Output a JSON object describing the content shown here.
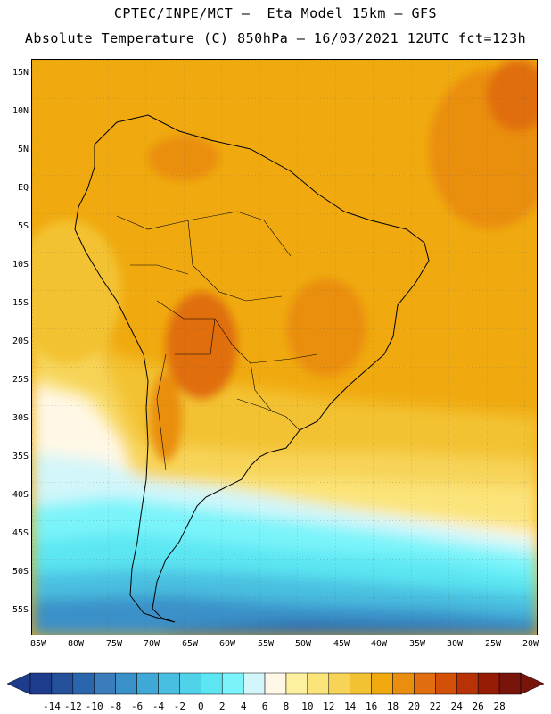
{
  "title_line1": "CPTEC/INPE/MCT –  Eta Model 15km – GFS",
  "title_line2": "Absolute Temperature (C) 850hPa – 16/03/2021 12UTC fct=123h",
  "lat_labels": [
    "15N",
    "10N",
    "5N",
    "EQ",
    "5S",
    "10S",
    "15S",
    "20S",
    "25S",
    "30S",
    "35S",
    "40S",
    "45S",
    "50S",
    "55S"
  ],
  "lon_labels": [
    "85W",
    "80W",
    "75W",
    "70W",
    "65W",
    "60W",
    "55W",
    "50W",
    "45W",
    "40W",
    "35W",
    "30W",
    "25W",
    "20W"
  ],
  "legend": {
    "labels": [
      "-14",
      "-12",
      "-10",
      "-8",
      "-6",
      "-4",
      "-2",
      "0",
      "2",
      "4",
      "6",
      "8",
      "10",
      "12",
      "14",
      "16",
      "18",
      "20",
      "22",
      "24",
      "26",
      "28"
    ],
    "colors": [
      "#1e3c8c",
      "#24509c",
      "#2a66ac",
      "#3a7cbc",
      "#3a90c8",
      "#40a8d6",
      "#48bfe0",
      "#50d2ea",
      "#5ce6f2",
      "#7af4fa",
      "#d2f6fa",
      "#fff8e6",
      "#fdf0a0",
      "#fbe47a",
      "#f7d458",
      "#f3c232",
      "#f0aa10",
      "#ea8e10",
      "#e06e10",
      "#d25008",
      "#b83208",
      "#961c06",
      "#78140a"
    ]
  }
}
